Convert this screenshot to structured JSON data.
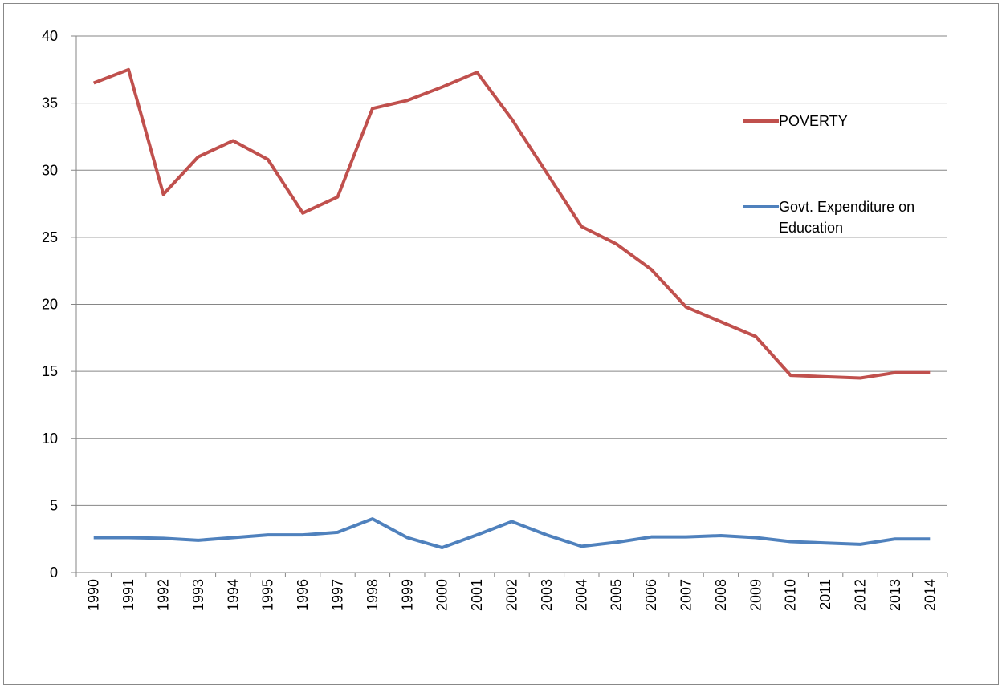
{
  "chart_data": {
    "type": "line",
    "categories": [
      "1990",
      "1991",
      "1992",
      "1993",
      "1994",
      "1995",
      "1996",
      "1997",
      "1998",
      "1999",
      "2000",
      "2001",
      "2002",
      "2003",
      "2004",
      "2005",
      "2006",
      "2007",
      "2008",
      "2009",
      "2010",
      "2011",
      "2012",
      "2013",
      "2014"
    ],
    "series": [
      {
        "name": "POVERTY",
        "color": "#c0504d",
        "values": [
          36.5,
          37.5,
          28.2,
          31,
          32.2,
          30.8,
          26.8,
          28,
          34.6,
          35.2,
          36.2,
          37.3,
          33.8,
          29.8,
          25.8,
          24.5,
          22.6,
          19.8,
          18.7,
          17.6,
          14.7,
          14.6,
          14.5,
          14.9,
          14.9
        ]
      },
      {
        "name": "Govt. Expenditure on Education",
        "color": "#4f81bd",
        "values": [
          2.6,
          2.6,
          2.55,
          2.4,
          2.6,
          2.8,
          2.8,
          3.0,
          4.0,
          2.6,
          1.85,
          2.8,
          3.8,
          2.8,
          1.95,
          2.25,
          2.65,
          2.65,
          2.75,
          2.6,
          2.3,
          2.2,
          2.1,
          2.5,
          2.5
        ]
      }
    ],
    "ylim": [
      0,
      40
    ],
    "yticks": [
      0,
      5,
      10,
      15,
      20,
      25,
      30,
      35,
      40
    ],
    "grid": true,
    "legend": "right"
  }
}
